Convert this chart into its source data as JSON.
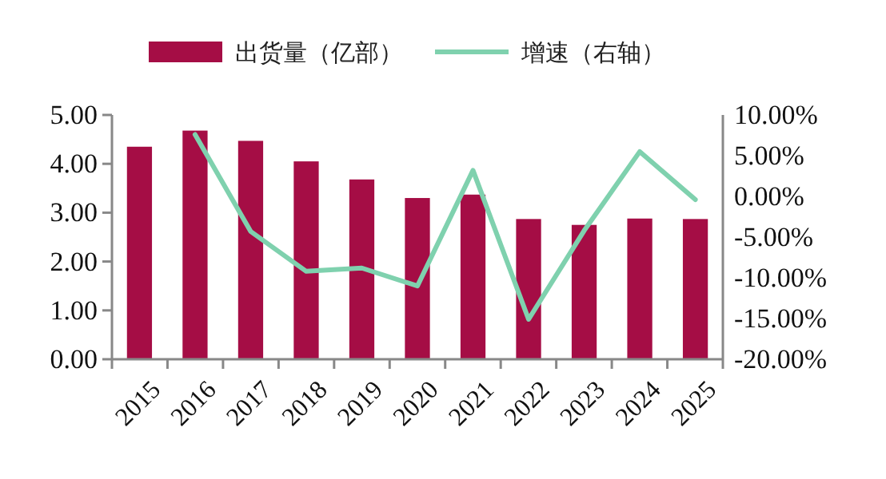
{
  "chart_data": {
    "type": "bar",
    "categories": [
      "2015",
      "2016",
      "2017",
      "2018",
      "2019",
      "2020",
      "2021",
      "2022",
      "2023",
      "2024",
      "2025"
    ],
    "series": [
      {
        "name": "出货量（亿部）",
        "color": "#a50d45",
        "values": [
          4.35,
          4.68,
          4.47,
          4.05,
          3.68,
          3.3,
          3.37,
          2.87,
          2.75,
          2.88,
          2.87
        ]
      },
      {
        "name": "增速（右轴）",
        "type": "line",
        "axis": "y2",
        "color": "#7fd1ae",
        "values": [
          null,
          7.6,
          -4.3,
          -9.2,
          -8.8,
          -11.0,
          3.2,
          -15.1,
          -4.2,
          5.5,
          -0.4
        ]
      }
    ],
    "ylim": [
      0,
      5
    ],
    "yticks": [
      {
        "value": 0,
        "label": "0.00"
      },
      {
        "value": 1,
        "label": "1.00"
      },
      {
        "value": 2,
        "label": "2.00"
      },
      {
        "value": 3,
        "label": "3.00"
      },
      {
        "value": 4,
        "label": "4.00"
      },
      {
        "value": 5,
        "label": "5.00"
      }
    ],
    "y2lim": [
      -20,
      10
    ],
    "y2ticks": [
      {
        "value": -20,
        "label": "-20.00%"
      },
      {
        "value": -15,
        "label": "-15.00%"
      },
      {
        "value": -10,
        "label": "-10.00%"
      },
      {
        "value": -5,
        "label": "-5.00%"
      },
      {
        "value": 0,
        "label": "0.00%"
      },
      {
        "value": 5,
        "label": "5.00%"
      },
      {
        "value": 10,
        "label": "10.00%"
      }
    ],
    "legend": "top",
    "grid": false
  }
}
